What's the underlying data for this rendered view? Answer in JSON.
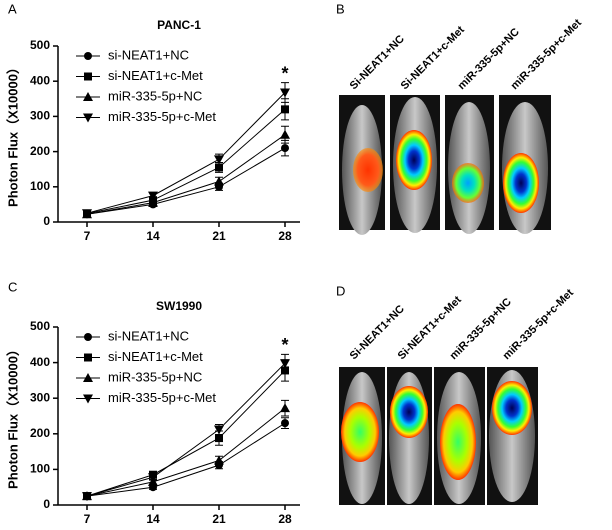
{
  "chart_data": [
    {
      "type": "line",
      "title": "PANC-1",
      "y_label": "Photon Flux（X10000）",
      "categories": [
        "7",
        "14",
        "21",
        "28"
      ],
      "series": [
        {
          "name": "si-NEAT1+NC",
          "color": "#000000",
          "marker": "circle",
          "values": [
            22,
            50,
            100,
            210
          ],
          "errors": [
            4,
            6,
            10,
            22
          ]
        },
        {
          "name": "si-NEAT1+c-Met",
          "color": "#000000",
          "marker": "square",
          "values": [
            24,
            62,
            155,
            320
          ],
          "errors": [
            4,
            8,
            14,
            30
          ]
        },
        {
          "name": "miR-335-5p+NC",
          "color": "#000000",
          "marker": "triangle-up",
          "values": [
            22,
            55,
            115,
            248
          ],
          "errors": [
            4,
            7,
            12,
            24
          ]
        },
        {
          "name": "miR-335-5p+c-Met",
          "color": "#000000",
          "marker": "triangle-down",
          "values": [
            25,
            75,
            178,
            368
          ],
          "errors": [
            4,
            9,
            15,
            28
          ]
        }
      ],
      "ylim": [
        0,
        500
      ],
      "yticks": [
        0,
        100,
        200,
        300,
        400,
        500
      ],
      "annotation": "*"
    },
    {
      "type": "line",
      "title": "SW1990",
      "y_label": "Photon Flux（X10000）",
      "categories": [
        "7",
        "14",
        "21",
        "28"
      ],
      "series": [
        {
          "name": "si-NEAT1+NC",
          "color": "#000000",
          "marker": "circle",
          "values": [
            25,
            50,
            112,
            230
          ],
          "errors": [
            3,
            6,
            10,
            15
          ]
        },
        {
          "name": "si-NEAT1+c-Met",
          "color": "#000000",
          "marker": "square",
          "values": [
            25,
            85,
            188,
            378
          ],
          "errors": [
            3,
            8,
            20,
            30
          ]
        },
        {
          "name": "miR-335-5p+NC",
          "color": "#000000",
          "marker": "triangle-up",
          "values": [
            25,
            65,
            125,
            272
          ],
          "errors": [
            3,
            7,
            12,
            22
          ]
        },
        {
          "name": "miR-335-5p+c-Met",
          "color": "#000000",
          "marker": "triangle-down",
          "values": [
            25,
            78,
            212,
            398
          ],
          "errors": [
            3,
            8,
            14,
            25
          ]
        }
      ],
      "ylim": [
        0,
        500
      ],
      "yticks": [
        0,
        100,
        200,
        300,
        400,
        500
      ],
      "annotation": "*"
    }
  ],
  "panels": {
    "labels": [
      "A",
      "B",
      "C",
      "D"
    ],
    "B_images": [
      "Si-NEAT1+NC",
      "Si-NEAT1+c-Met",
      "miR-335-5p+NC",
      "miR-335-5p+c-Met"
    ],
    "D_images": [
      "Si-NEAT1+NC",
      "Si-NEAT1+c-Met",
      "miR-335-5p+NC",
      "miR-335-5p+c-Met"
    ]
  }
}
